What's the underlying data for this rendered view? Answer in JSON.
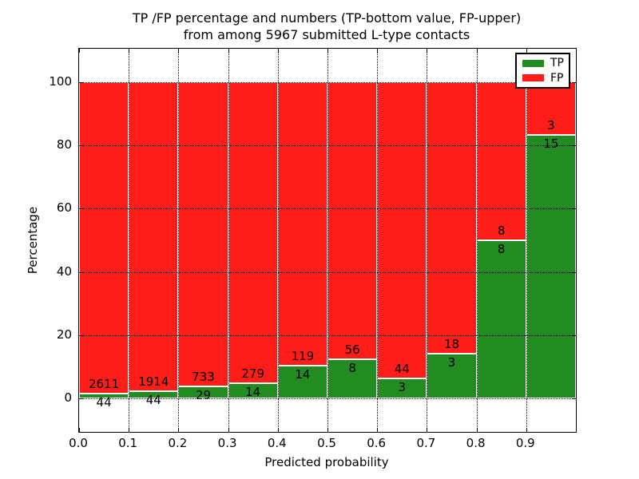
{
  "figure": {
    "title_line1": "TP /FP percentage and numbers (TP-bottom value, FP-upper)",
    "title_line2": "from among 5967 submitted L-type contacts",
    "background": "#ffffff"
  },
  "colors": {
    "tp": "#228b22",
    "fp": "#ff1e17",
    "bar_edge": "#ffffff",
    "grid": "#000000",
    "text": "#000000"
  },
  "legend": {
    "position": "upper right",
    "items": [
      {
        "label": "TP",
        "color_key": "tp",
        "swatch": "green-rect-icon"
      },
      {
        "label": "FP",
        "color_key": "fp",
        "swatch": "red-rect-icon"
      }
    ]
  },
  "chart_data": {
    "type": "bar",
    "stacked": true,
    "orientation": "vertical",
    "title": "TP /FP percentage and numbers (TP-bottom value, FP-upper) from among 5967 submitted L-type contacts",
    "xlabel": "Predicted probability",
    "ylabel": "Percentage",
    "xlim": [
      0.0,
      1.0
    ],
    "ylim": [
      -10.5,
      110.5
    ],
    "x_tick_labels": [
      "0.0",
      "0.1",
      "0.2",
      "0.3",
      "0.4",
      "0.5",
      "0.6",
      "0.7",
      "0.8",
      "0.9"
    ],
    "y_tick_values": [
      0,
      20,
      40,
      60,
      80,
      100
    ],
    "grid_style": "dotted",
    "total_contacts": 5967,
    "series": [
      {
        "name": "TP",
        "stack_order": "bottom",
        "color_key": "tp"
      },
      {
        "name": "FP",
        "stack_order": "top",
        "color_key": "fp"
      }
    ],
    "bins": [
      {
        "x_start": 0.0,
        "x_end": 0.1,
        "tp": 44,
        "fp": 2611,
        "tp_pct": 1.66,
        "fp_pct": 98.34
      },
      {
        "x_start": 0.1,
        "x_end": 0.2,
        "tp": 44,
        "fp": 1914,
        "tp_pct": 2.25,
        "fp_pct": 97.75
      },
      {
        "x_start": 0.2,
        "x_end": 0.3,
        "tp": 29,
        "fp": 733,
        "tp_pct": 3.81,
        "fp_pct": 96.19
      },
      {
        "x_start": 0.3,
        "x_end": 0.4,
        "tp": 14,
        "fp": 279,
        "tp_pct": 4.78,
        "fp_pct": 95.22
      },
      {
        "x_start": 0.4,
        "x_end": 0.5,
        "tp": 14,
        "fp": 119,
        "tp_pct": 10.53,
        "fp_pct": 89.47
      },
      {
        "x_start": 0.5,
        "x_end": 0.6,
        "tp": 8,
        "fp": 56,
        "tp_pct": 12.5,
        "fp_pct": 87.5
      },
      {
        "x_start": 0.6,
        "x_end": 0.7,
        "tp": 3,
        "fp": 44,
        "tp_pct": 6.38,
        "fp_pct": 93.62
      },
      {
        "x_start": 0.7,
        "x_end": 0.8,
        "tp": 3,
        "fp": 18,
        "tp_pct": 14.29,
        "fp_pct": 85.71
      },
      {
        "x_start": 0.8,
        "x_end": 0.9,
        "tp": 8,
        "fp": 8,
        "tp_pct": 50.0,
        "fp_pct": 50.0
      },
      {
        "x_start": 0.9,
        "x_end": 1.0,
        "tp": 15,
        "fp": 3,
        "tp_pct": 83.33,
        "fp_pct": 16.67
      }
    ]
  }
}
